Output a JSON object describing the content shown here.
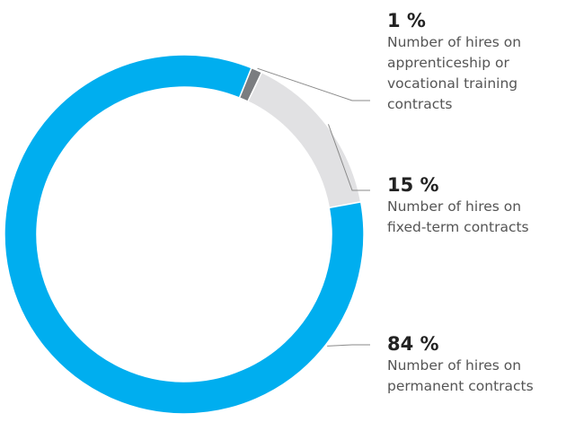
{
  "colors": {
    "permanent": "#00aeef",
    "fixed_term": "#e1e1e3",
    "apprenticeship": "#7b7d80",
    "leader": "#8a8a8a"
  },
  "chart_data": {
    "type": "pie",
    "variant": "donut",
    "start_angle_deg": 22,
    "direction": "clockwise",
    "series": [
      {
        "key": "apprenticeship",
        "value": 1,
        "percent_label": "1 %",
        "description": "Number of hires on apprenticeship or vocational training contracts"
      },
      {
        "key": "fixed_term",
        "value": 15,
        "percent_label": "15 %",
        "description": "Number of hires on fixed-term contracts"
      },
      {
        "key": "permanent",
        "value": 84,
        "percent_label": "84 %",
        "description": "Number of hires on permanent contracts"
      }
    ]
  }
}
